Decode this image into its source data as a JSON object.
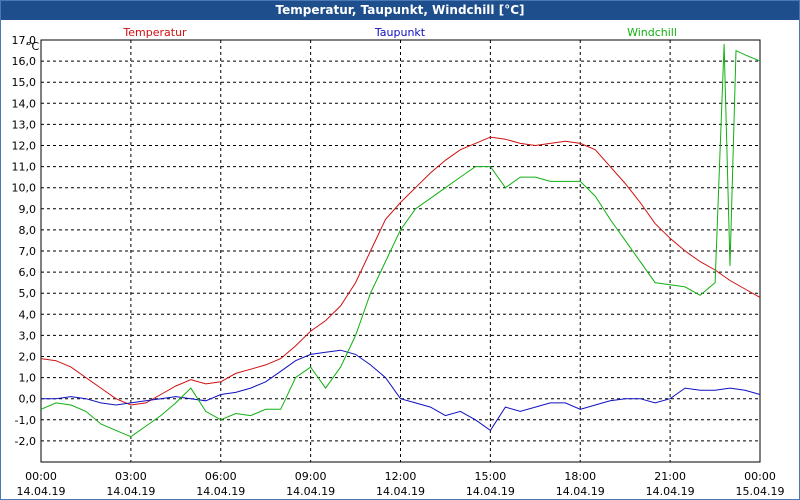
{
  "window": {
    "title": "Temperatur, Taupunkt, Windchill [°C]"
  },
  "chart_data": {
    "type": "line",
    "title": "Temperatur, Taupunkt, Windchill [°C]",
    "ylabel": "°C",
    "ylim": [
      -3.0,
      17.0
    ],
    "xlim": [
      0,
      24
    ],
    "y_ticks": [
      "-2,0",
      "-1,0",
      "0,0",
      "1,0",
      "2,0",
      "3,0",
      "4,0",
      "5,0",
      "6,0",
      "7,0",
      "8,0",
      "9,0",
      "10,0",
      "11,0",
      "12,0",
      "13,0",
      "14,0",
      "15,0",
      "16,0",
      "17,0"
    ],
    "x_ticks": [
      {
        "time": "00:00",
        "date": "14.04.19",
        "h": 0
      },
      {
        "time": "03:00",
        "date": "14.04.19",
        "h": 3
      },
      {
        "time": "06:00",
        "date": "14.04.19",
        "h": 6
      },
      {
        "time": "09:00",
        "date": "14.04.19",
        "h": 9
      },
      {
        "time": "12:00",
        "date": "14.04.19",
        "h": 12
      },
      {
        "time": "15:00",
        "date": "14.04.19",
        "h": 15
      },
      {
        "time": "18:00",
        "date": "14.04.19",
        "h": 18
      },
      {
        "time": "21:00",
        "date": "14.04.19",
        "h": 21
      },
      {
        "time": "00:00",
        "date": "15.04.19",
        "h": 24
      }
    ],
    "grid": true,
    "series": [
      {
        "name": "Temperatur",
        "color": "#d01010",
        "x": [
          0,
          0.5,
          1,
          1.5,
          2,
          2.5,
          3,
          3.5,
          4,
          4.5,
          5,
          5.5,
          6,
          6.5,
          7,
          7.5,
          8,
          8.5,
          9,
          9.5,
          10,
          10.5,
          11,
          11.5,
          12,
          12.5,
          13,
          13.5,
          14,
          14.5,
          15,
          15.5,
          16,
          16.5,
          17,
          17.5,
          18,
          18.5,
          19,
          19.5,
          20,
          20.5,
          21,
          21.5,
          22,
          22.5,
          23,
          23.5,
          24
        ],
        "values": [
          1.9,
          1.8,
          1.5,
          1.0,
          0.5,
          0.0,
          -0.3,
          -0.2,
          0.2,
          0.6,
          0.9,
          0.7,
          0.8,
          1.2,
          1.4,
          1.6,
          1.9,
          2.5,
          3.2,
          3.7,
          4.4,
          5.5,
          7.0,
          8.5,
          9.3,
          10.0,
          10.7,
          11.3,
          11.8,
          12.1,
          12.4,
          12.3,
          12.1,
          12.0,
          12.1,
          12.2,
          12.1,
          11.8,
          11.0,
          10.2,
          9.3,
          8.3,
          7.6,
          7.0,
          6.5,
          6.1,
          5.6,
          5.2,
          4.8
        ]
      },
      {
        "name": "Taupunkt",
        "color": "#1010c0",
        "x": [
          0,
          0.5,
          1,
          1.5,
          2,
          2.5,
          3,
          3.5,
          4,
          4.5,
          5,
          5.5,
          6,
          6.5,
          7,
          7.5,
          8,
          8.5,
          9,
          9.5,
          10,
          10.5,
          11,
          11.5,
          12,
          12.5,
          13,
          13.5,
          14,
          14.5,
          15,
          15.5,
          16,
          16.5,
          17,
          17.5,
          18,
          18.5,
          19,
          19.5,
          20,
          20.5,
          21,
          21.5,
          22,
          22.5,
          23,
          23.5,
          24
        ],
        "values": [
          0.0,
          0.0,
          0.1,
          0.0,
          -0.2,
          -0.3,
          -0.2,
          -0.1,
          0.0,
          0.1,
          0.0,
          -0.1,
          0.2,
          0.3,
          0.5,
          0.8,
          1.3,
          1.8,
          2.1,
          2.2,
          2.3,
          2.1,
          1.6,
          1.0,
          0.0,
          -0.2,
          -0.4,
          -0.8,
          -0.6,
          -1.0,
          -1.5,
          -0.4,
          -0.6,
          -0.4,
          -0.2,
          -0.2,
          -0.5,
          -0.3,
          -0.1,
          0.0,
          0.0,
          -0.2,
          0.0,
          0.5,
          0.4,
          0.4,
          0.5,
          0.4,
          0.2
        ]
      },
      {
        "name": "Windchill",
        "color": "#10b010",
        "x": [
          0,
          0.5,
          1,
          1.5,
          2,
          2.5,
          3,
          3.5,
          4,
          4.5,
          5,
          5.5,
          6,
          6.5,
          7,
          7.5,
          8,
          8.5,
          9,
          9.5,
          10,
          10.5,
          11,
          11.5,
          12,
          12.5,
          13,
          13.5,
          14,
          14.5,
          15,
          15.5,
          16,
          16.5,
          17,
          17.5,
          18,
          18.5,
          19,
          19.5,
          20,
          20.5,
          21,
          21.5,
          22,
          22.5,
          22.8,
          23,
          23.2,
          23.5,
          24
        ],
        "values": [
          -0.5,
          -0.2,
          -0.3,
          -0.6,
          -1.2,
          -1.5,
          -1.8,
          -1.3,
          -0.8,
          -0.2,
          0.5,
          -0.6,
          -1.0,
          -0.7,
          -0.8,
          -0.5,
          -0.5,
          1.0,
          1.5,
          0.5,
          1.5,
          3.0,
          5.0,
          6.5,
          8.0,
          9.0,
          9.5,
          10.0,
          10.5,
          11.0,
          11.0,
          10.0,
          10.5,
          10.5,
          10.3,
          10.3,
          10.3,
          9.6,
          8.5,
          7.5,
          6.5,
          5.5,
          5.4,
          5.3,
          4.9,
          5.5,
          16.8,
          6.3,
          16.5,
          16.3,
          16.0
        ]
      }
    ]
  }
}
